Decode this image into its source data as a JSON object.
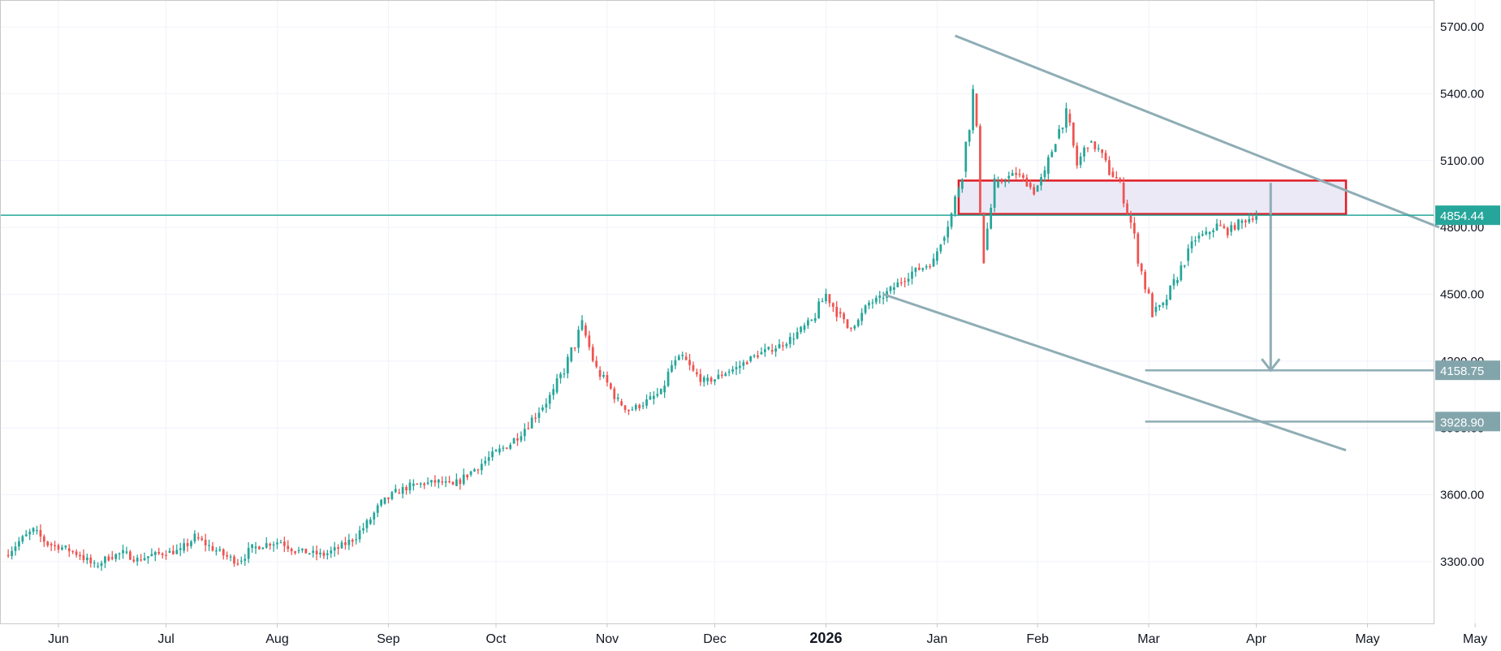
{
  "chart_data": {
    "type": "candlestick",
    "title": "",
    "xlabel": "",
    "ylabel": "",
    "ylim": [
      3040,
      5800
    ],
    "grid": true,
    "y_ticks": [
      "5700.00",
      "5400.00",
      "5100.00",
      "4800.00",
      "4500.00",
      "4200.00",
      "3900.00",
      "3600.00",
      "3300.00"
    ],
    "x_ticks": [
      {
        "label": "Jun",
        "date": "2025-06-01",
        "bold": false
      },
      {
        "label": "Jul",
        "date": "2025-07-01",
        "bold": false
      },
      {
        "label": "Aug",
        "date": "2025-08-01",
        "bold": false
      },
      {
        "label": "Sep",
        "date": "2025-09-01",
        "bold": false
      },
      {
        "label": "Oct",
        "date": "2025-10-01",
        "bold": false
      },
      {
        "label": "Nov",
        "date": "2025-11-01",
        "bold": false
      },
      {
        "label": "Dec",
        "date": "2025-12-01",
        "bold": false
      },
      {
        "label": "2026",
        "date": "2026-01-01",
        "bold": true
      },
      {
        "label": "Jan",
        "date": "2026-02-01",
        "bold": false
      },
      {
        "label": "Feb",
        "date": "2026-03-01",
        "bold": false
      },
      {
        "label": "Mar",
        "date": "2026-04-01",
        "bold": false
      },
      {
        "label": "Apr",
        "date": "2026-05-01",
        "bold": false
      },
      {
        "label": "May",
        "date": "2026-06-01",
        "bold": false
      },
      {
        "label": "May",
        "date": "2026-07-01",
        "bold": false
      }
    ],
    "price_path": [
      [
        "2025-05-17",
        3330
      ],
      [
        "2025-05-21",
        3390
      ],
      [
        "2025-05-25",
        3440
      ],
      [
        "2025-05-29",
        3380
      ],
      [
        "2025-06-03",
        3360
      ],
      [
        "2025-06-07",
        3330
      ],
      [
        "2025-06-11",
        3280
      ],
      [
        "2025-06-15",
        3320
      ],
      [
        "2025-06-19",
        3340
      ],
      [
        "2025-06-23",
        3310
      ],
      [
        "2025-06-27",
        3330
      ],
      [
        "2025-07-01",
        3340
      ],
      [
        "2025-07-05",
        3350
      ],
      [
        "2025-07-09",
        3410
      ],
      [
        "2025-07-13",
        3370
      ],
      [
        "2025-07-17",
        3330
      ],
      [
        "2025-07-21",
        3300
      ],
      [
        "2025-07-25",
        3360
      ],
      [
        "2025-07-29",
        3380
      ],
      [
        "2025-08-02",
        3390
      ],
      [
        "2025-08-06",
        3350
      ],
      [
        "2025-08-10",
        3340
      ],
      [
        "2025-08-14",
        3330
      ],
      [
        "2025-08-18",
        3360
      ],
      [
        "2025-08-22",
        3400
      ],
      [
        "2025-08-26",
        3470
      ],
      [
        "2025-08-30",
        3560
      ],
      [
        "2025-09-03",
        3610
      ],
      [
        "2025-09-07",
        3640
      ],
      [
        "2025-09-11",
        3650
      ],
      [
        "2025-09-15",
        3660
      ],
      [
        "2025-09-19",
        3640
      ],
      [
        "2025-09-23",
        3690
      ],
      [
        "2025-09-27",
        3740
      ],
      [
        "2025-10-01",
        3790
      ],
      [
        "2025-10-05",
        3830
      ],
      [
        "2025-10-09",
        3900
      ],
      [
        "2025-10-13",
        3980
      ],
      [
        "2025-10-17",
        4060
      ],
      [
        "2025-10-21",
        4200
      ],
      [
        "2025-10-25",
        4360
      ],
      [
        "2025-10-29",
        4160
      ],
      [
        "2025-11-01",
        4100
      ],
      [
        "2025-11-04",
        4020
      ],
      [
        "2025-11-07",
        3980
      ],
      [
        "2025-11-10",
        4000
      ],
      [
        "2025-11-13",
        4030
      ],
      [
        "2025-11-16",
        4060
      ],
      [
        "2025-11-19",
        4180
      ],
      [
        "2025-11-22",
        4220
      ],
      [
        "2025-11-25",
        4150
      ],
      [
        "2025-11-28",
        4110
      ],
      [
        "2025-12-01",
        4120
      ],
      [
        "2025-12-04",
        4150
      ],
      [
        "2025-12-07",
        4170
      ],
      [
        "2025-12-10",
        4200
      ],
      [
        "2025-12-13",
        4230
      ],
      [
        "2025-12-16",
        4250
      ],
      [
        "2025-12-19",
        4270
      ],
      [
        "2025-12-22",
        4300
      ],
      [
        "2025-12-25",
        4340
      ],
      [
        "2025-12-28",
        4380
      ],
      [
        "2026-01-01",
        4500
      ],
      [
        "2026-01-04",
        4420
      ],
      [
        "2026-01-07",
        4350
      ],
      [
        "2026-01-10",
        4380
      ],
      [
        "2026-01-13",
        4460
      ],
      [
        "2026-01-16",
        4480
      ],
      [
        "2026-01-19",
        4520
      ],
      [
        "2026-01-22",
        4560
      ],
      [
        "2026-01-25",
        4600
      ],
      [
        "2026-01-28",
        4620
      ],
      [
        "2026-01-31",
        4650
      ],
      [
        "2026-02-02",
        4740
      ],
      [
        "2026-02-05",
        4860
      ],
      [
        "2026-02-08",
        5050
      ],
      [
        "2026-02-11",
        5400
      ],
      [
        "2026-02-14",
        4700
      ],
      [
        "2026-02-17",
        4980
      ],
      [
        "2026-02-20",
        5020
      ],
      [
        "2026-02-23",
        5040
      ],
      [
        "2026-02-26",
        5000
      ],
      [
        "2026-02-28",
        4960
      ],
      [
        "2026-03-03",
        5040
      ],
      [
        "2026-03-06",
        5200
      ],
      [
        "2026-03-09",
        5310
      ],
      [
        "2026-03-12",
        5080
      ],
      [
        "2026-03-15",
        5180
      ],
      [
        "2026-03-18",
        5150
      ],
      [
        "2026-03-21",
        5050
      ],
      [
        "2026-03-24",
        5000
      ],
      [
        "2026-03-27",
        4820
      ],
      [
        "2026-03-30",
        4600
      ],
      [
        "2026-04-02",
        4420
      ],
      [
        "2026-04-05",
        4450
      ],
      [
        "2026-04-08",
        4550
      ],
      [
        "2026-04-11",
        4650
      ],
      [
        "2026-04-14",
        4750
      ],
      [
        "2026-04-17",
        4770
      ],
      [
        "2026-04-20",
        4810
      ],
      [
        "2026-04-23",
        4780
      ],
      [
        "2026-04-26",
        4820
      ],
      [
        "2026-04-29",
        4840
      ],
      [
        "2026-05-01",
        4854
      ]
    ],
    "price_line": {
      "value": 4854.44,
      "label": "4854.44",
      "color": "#26a69a"
    },
    "target_levels": [
      {
        "value": 4158.75,
        "label": "4158.75",
        "from": "2026-03-31",
        "to": "2026-07-12"
      },
      {
        "value": 3928.9,
        "label": "3928.90",
        "from": "2026-03-31",
        "to": "2026-07-12"
      }
    ],
    "resistance_zone": {
      "from": "2026-02-07",
      "to": "2026-05-26",
      "low": 4860,
      "high": 5010
    },
    "upper_trendline": {
      "from": [
        "2026-02-06",
        5660
      ],
      "to": [
        "2026-06-21",
        4800
      ]
    },
    "lower_trendline": {
      "from": [
        "2026-01-17",
        4500
      ],
      "to": [
        "2026-05-26",
        3800
      ]
    },
    "projection_arrow": {
      "date": "2026-05-05",
      "from": 5000,
      "to": 4158.75
    },
    "colors": {
      "up": "#26a69a",
      "down": "#ef5350",
      "pattern": "#8fadb5",
      "zone_border": "#e01b24",
      "zone_fill": "#ece9f7",
      "badge_target": "#82a5ab",
      "grid": "#f0f3fa",
      "axis": "#c8c8c8"
    }
  }
}
